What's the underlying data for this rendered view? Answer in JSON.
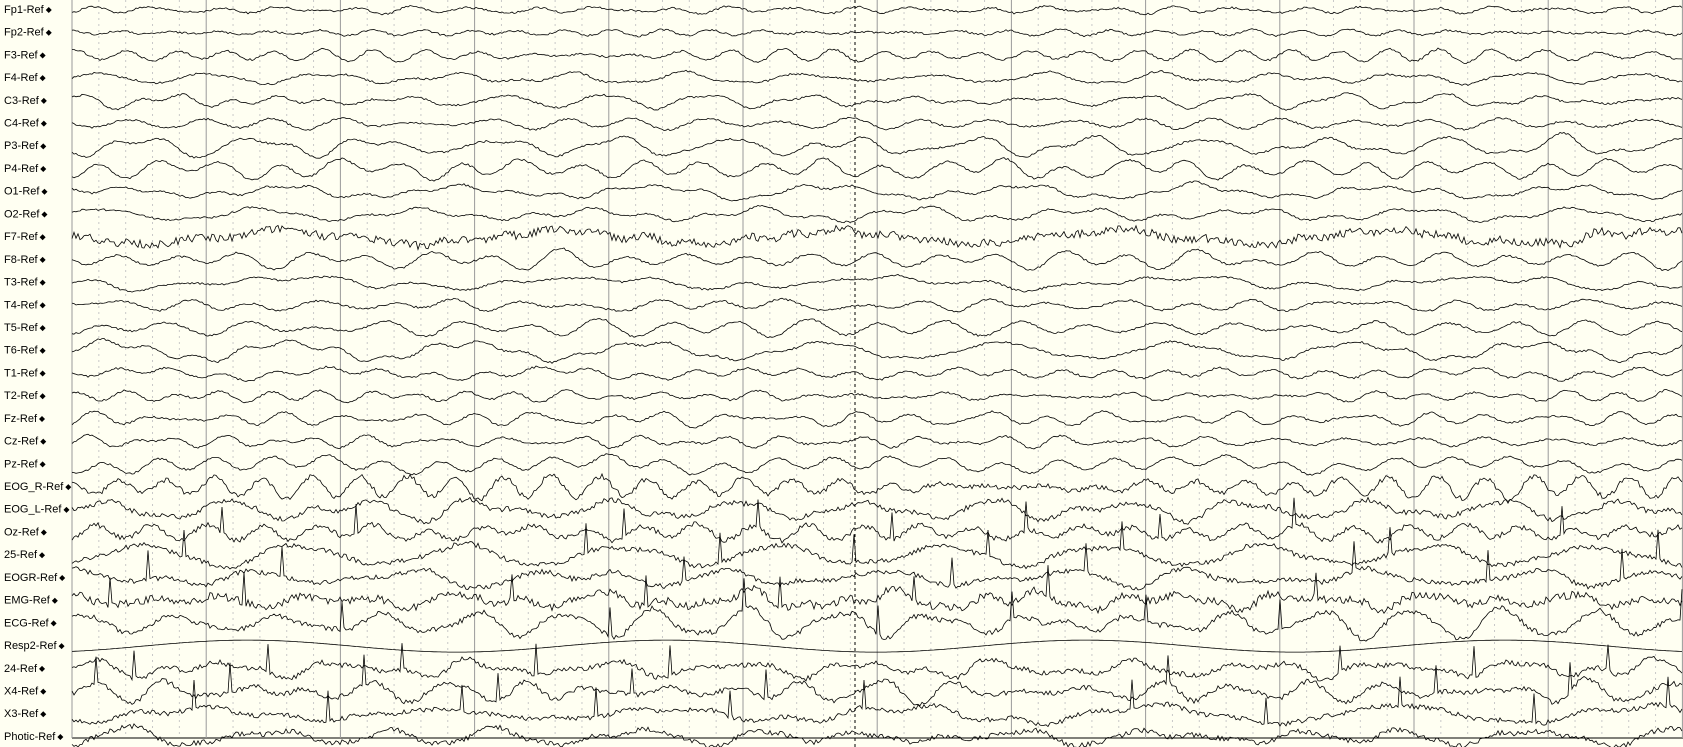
{
  "channels": [
    "Fp1-Ref",
    "Fp2-Ref",
    "F3-Ref",
    "F4-Ref",
    "C3-Ref",
    "C4-Ref",
    "P3-Ref",
    "P4-Ref",
    "O1-Ref",
    "O2-Ref",
    "F7-Ref",
    "F8-Ref",
    "T3-Ref",
    "T4-Ref",
    "T5-Ref",
    "T6-Ref",
    "T1-Ref",
    "T2-Ref",
    "Fz-Ref",
    "Cz-Ref",
    "Pz-Ref",
    "EOG_R-Ref",
    "EOG_L-Ref",
    "Oz-Ref",
    "25-Ref",
    "EOGR-Ref",
    "EMG-Ref",
    "ECG-Ref",
    "Resp2-Ref",
    "24-Ref",
    "X4-Ref",
    "X3-Ref",
    "Photic-Ref"
  ]
}
